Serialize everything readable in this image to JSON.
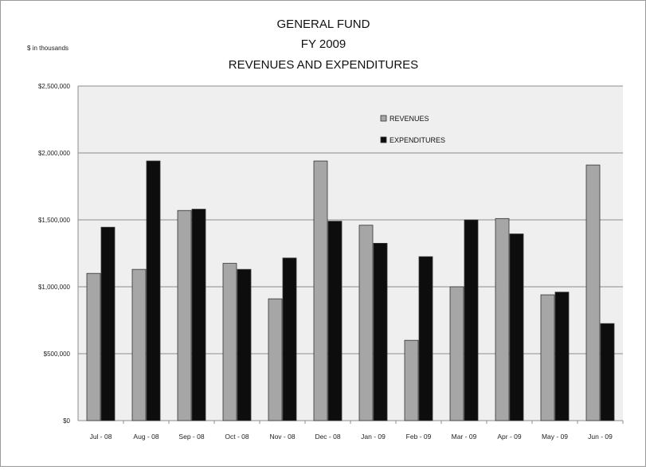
{
  "chart_data": {
    "type": "bar",
    "title": [
      "GENERAL FUND",
      "FY 2009",
      "REVENUES AND EXPENDITURES"
    ],
    "units_note": "$ in thousands",
    "xlabel": "",
    "ylabel": "",
    "categories": [
      "Jul - 08",
      "Aug - 08",
      "Sep - 08",
      "Oct - 08",
      "Nov - 08",
      "Dec - 08",
      "Jan - 09",
      "Feb - 09",
      "Mar - 09",
      "Apr - 09",
      "May - 09",
      "Jun - 09"
    ],
    "series": [
      {
        "name": "REVENUES",
        "color": "#a6a6a6",
        "values": [
          1100000,
          1130000,
          1570000,
          1175000,
          910000,
          1940000,
          1460000,
          600000,
          1000000,
          1510000,
          940000,
          1910000
        ]
      },
      {
        "name": "EXPENDITURES",
        "color": "#0d0d0d",
        "values": [
          1445000,
          1940000,
          1580000,
          1130000,
          1215000,
          1490000,
          1325000,
          1225000,
          1500000,
          1395000,
          960000,
          725000
        ]
      }
    ],
    "ylim": [
      0,
      2500000
    ],
    "yticks": [
      0,
      500000,
      1000000,
      1500000,
      2000000,
      2500000
    ],
    "ytick_labels": [
      "$0",
      "$500,000",
      "$1,000,000",
      "$1,500,000",
      "$2,000,000",
      "$2,500,000"
    ],
    "grid": true,
    "legend_position": "top-center"
  }
}
